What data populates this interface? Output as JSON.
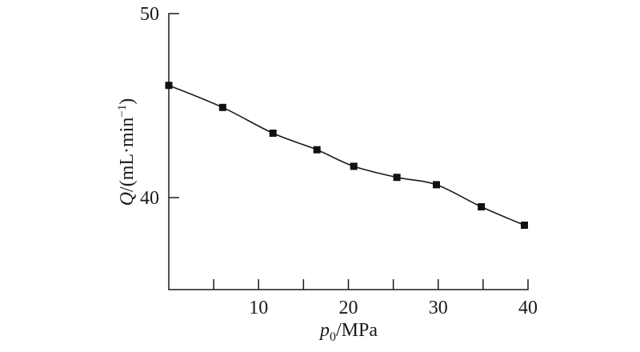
{
  "chart_data": {
    "type": "line",
    "title": "",
    "xlabel": {
      "symbol": "p",
      "subscript": "0",
      "unit": "/MPa"
    },
    "ylabel": {
      "symbol": "Q",
      "unit": "/(mL·min",
      "superscript": "−1",
      "close": ")"
    },
    "xlim": [
      0,
      40
    ],
    "ylim": [
      35,
      50
    ],
    "x_ticks": [
      0,
      5,
      10,
      15,
      20,
      25,
      30,
      35,
      40
    ],
    "x_tick_labels": [
      "10",
      "20",
      "30",
      "40"
    ],
    "x_tick_label_values": [
      10,
      20,
      30,
      40
    ],
    "y_tick_labels": [
      "50",
      "40"
    ],
    "y_tick_label_values": [
      50,
      40
    ],
    "grid": false,
    "series": [
      {
        "marker": "square",
        "x": [
          0,
          6,
          11.6,
          16.5,
          20.6,
          25.4,
          29.8,
          34.8,
          39.6
        ],
        "y": [
          46.1,
          44.9,
          43.5,
          42.6,
          41.7,
          41.1,
          40.7,
          39.5,
          38.5
        ]
      }
    ]
  }
}
